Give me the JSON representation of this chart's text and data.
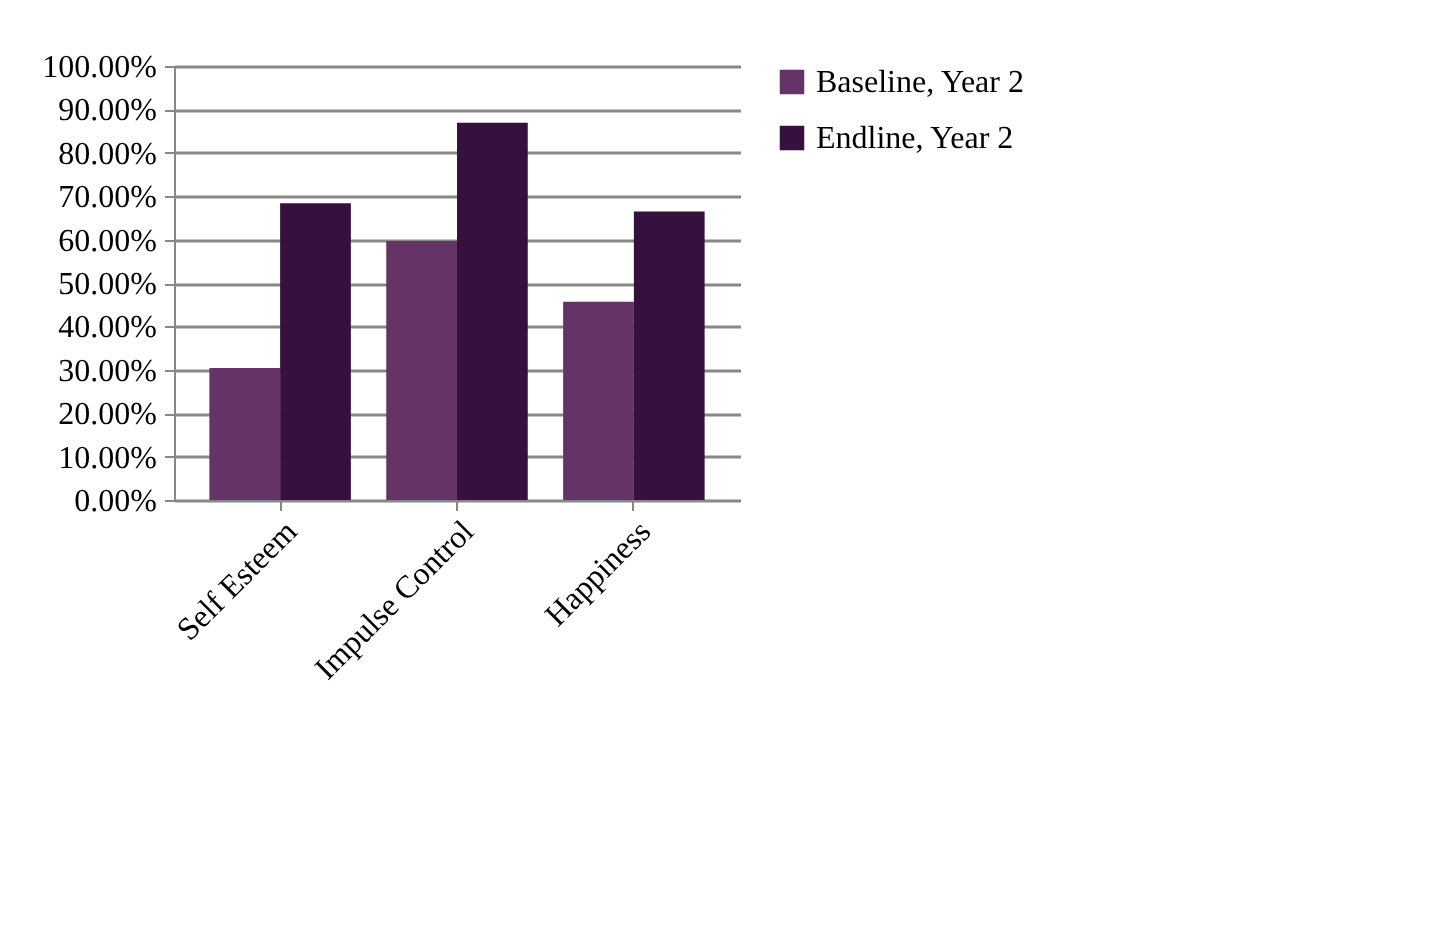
{
  "chart_data": {
    "type": "bar",
    "categories": [
      "Self Esteem",
      "Impulse Control",
      "Happiness"
    ],
    "series": [
      {
        "name": "Baseline, Year 2",
        "color": "#663366",
        "values": [
          30.4,
          59.7,
          45.7
        ]
      },
      {
        "name": "Endline, Year 2",
        "color": "#36103f",
        "values": [
          68.4,
          86.9,
          66.5
        ]
      }
    ],
    "ylim": [
      0,
      100
    ],
    "yticks": [
      {
        "value": 0,
        "label": "0.00%"
      },
      {
        "value": 10,
        "label": "10.00%"
      },
      {
        "value": 20,
        "label": "20.00%"
      },
      {
        "value": 30,
        "label": "30.00%"
      },
      {
        "value": 40,
        "label": "40.00%"
      },
      {
        "value": 50,
        "label": "50.00%"
      },
      {
        "value": 60,
        "label": "60.00%"
      },
      {
        "value": 70,
        "label": "70.00%"
      },
      {
        "value": 80,
        "label": "80.00%"
      },
      {
        "value": 90,
        "label": "90.00%"
      },
      {
        "value": 100,
        "label": "100.00%"
      }
    ],
    "grid": "y",
    "legend": "right"
  }
}
